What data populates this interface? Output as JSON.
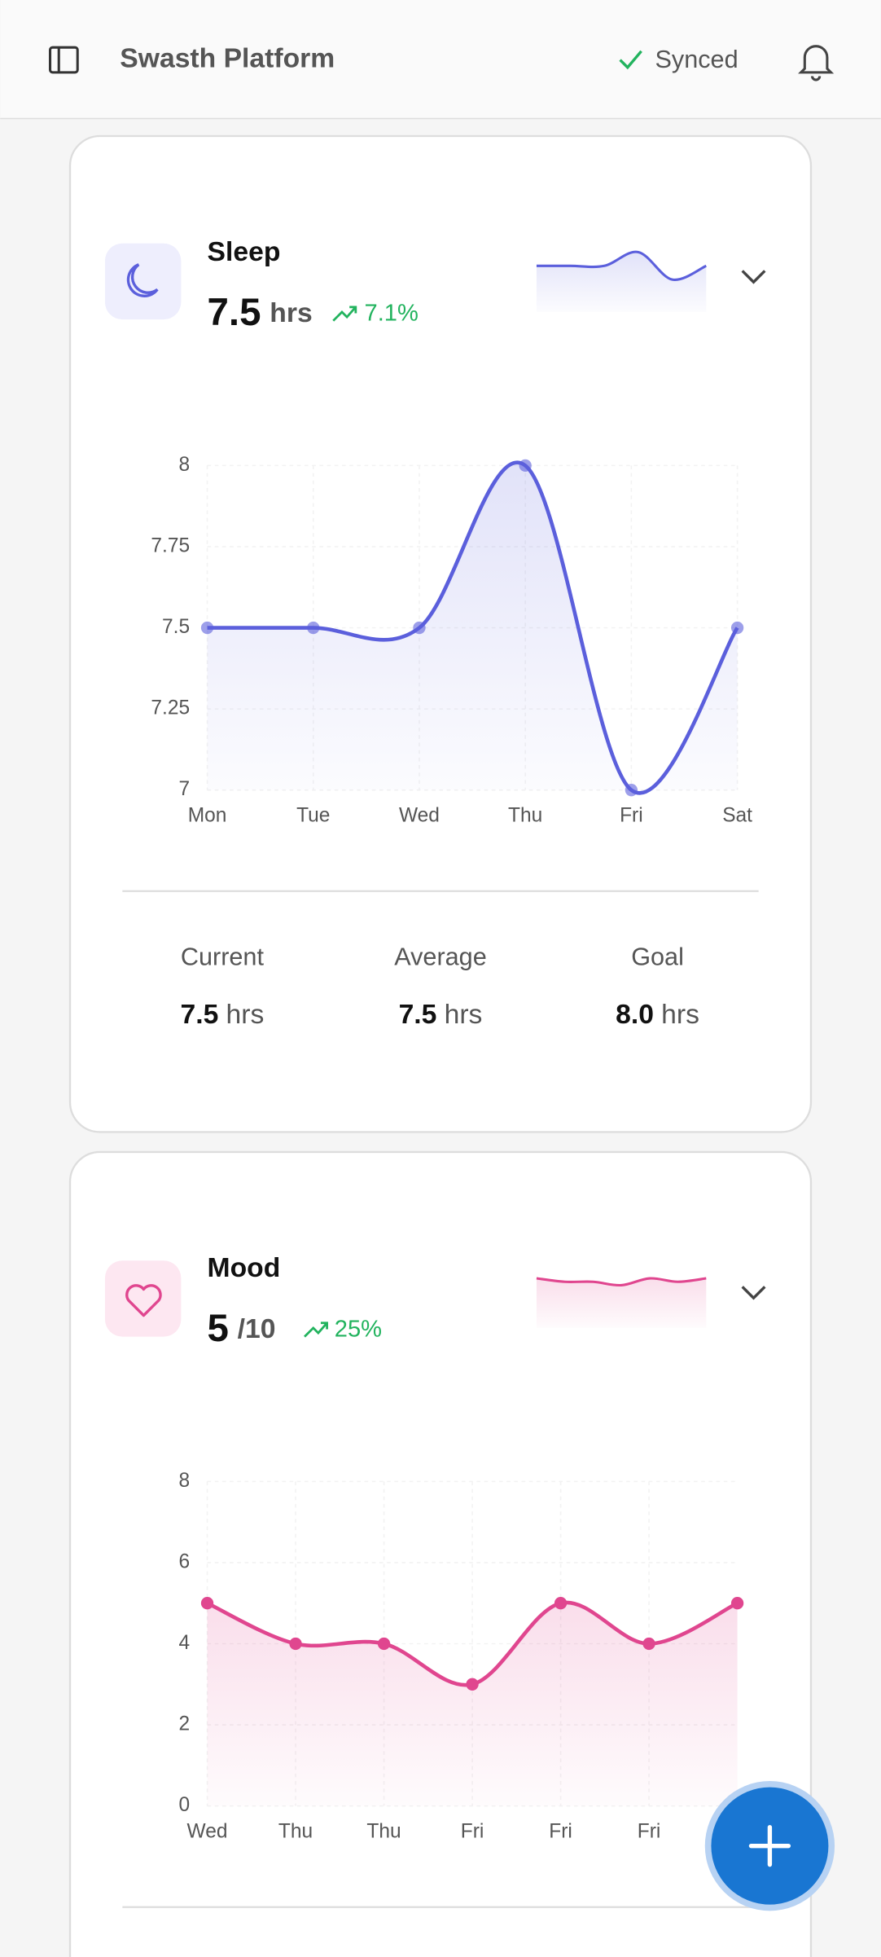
{
  "header": {
    "title": "Swasth Platform",
    "status": "Synced"
  },
  "cards": [
    {
      "title": "Sleep",
      "value": 7.5,
      "unit": "hrs",
      "change": "7.1%",
      "chart_data": {
        "type": "line",
        "categories": [
          "Mon",
          "Tue",
          "Wed",
          "Thu",
          "Fri",
          "Sat"
        ],
        "values": [
          7.5,
          7.5,
          7.5,
          8,
          7,
          7.5
        ],
        "ylim": [
          7,
          8
        ],
        "yticks": [
          7,
          7.25,
          7.5,
          7.75,
          8
        ],
        "color": "#5b5fdc",
        "grid": true
      },
      "stats": [
        {
          "label": "Current",
          "value": 7.5,
          "unit": "hrs"
        },
        {
          "label": "Average",
          "value": 7.5,
          "unit": "hrs"
        },
        {
          "label": "Goal",
          "value": "8.0",
          "unit": "hrs"
        }
      ]
    },
    {
      "title": "Mood",
      "value": 5,
      "unit": "/10",
      "change": "25%",
      "chart_data": {
        "type": "line",
        "categories": [
          "Wed",
          "Thu",
          "Thu",
          "Fri",
          "Fri",
          "Fri",
          null
        ],
        "values": [
          5,
          4,
          4,
          3,
          5,
          4,
          5
        ],
        "ylim": [
          0,
          8
        ],
        "yticks": [
          0,
          2,
          4,
          6,
          8
        ],
        "color": "#e0468f",
        "grid": true
      }
    }
  ]
}
